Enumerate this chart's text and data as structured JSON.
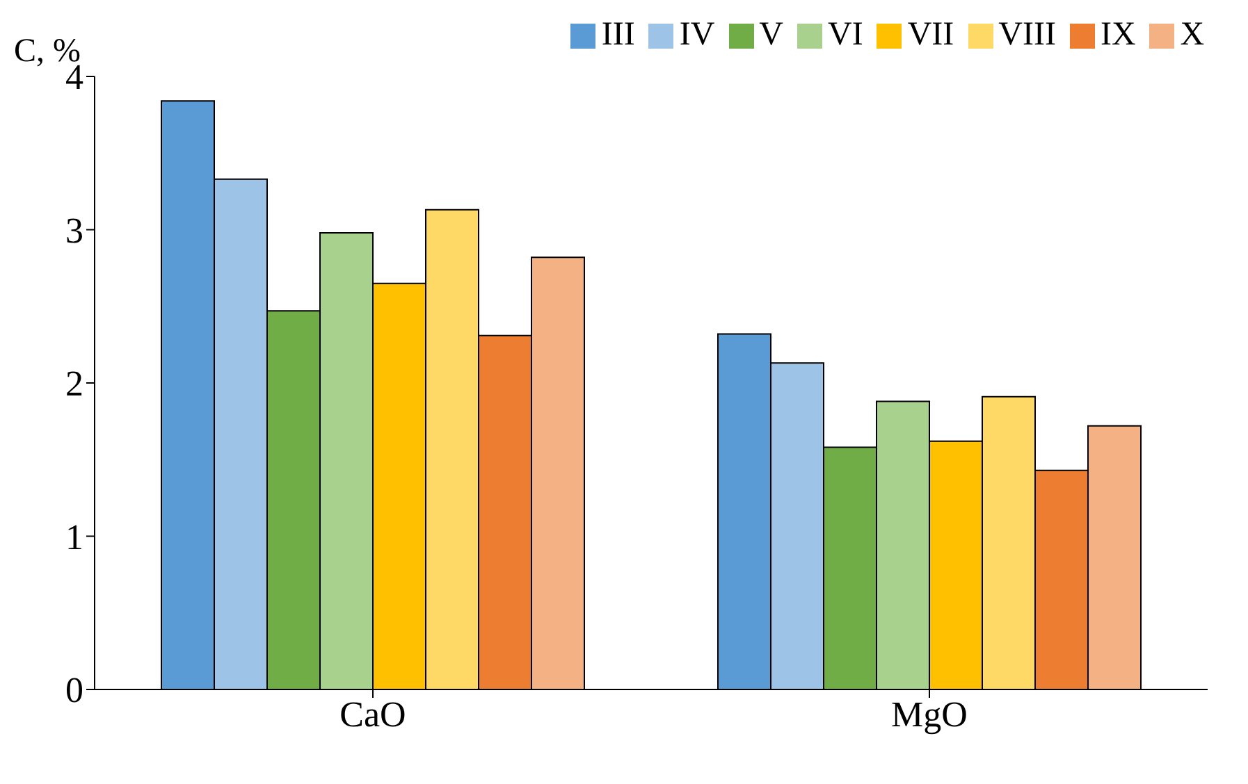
{
  "chart_data": {
    "type": "bar",
    "ylabel": "C, %",
    "categories": [
      "CaO",
      "MgO"
    ],
    "series": [
      {
        "name": "III",
        "color": "#5b9bd5",
        "values": [
          3.84,
          2.32
        ]
      },
      {
        "name": "IV",
        "color": "#9dc3e6",
        "values": [
          3.33,
          2.13
        ]
      },
      {
        "name": "V",
        "color": "#70ad47",
        "values": [
          2.47,
          1.58
        ]
      },
      {
        "name": "VI",
        "color": "#a9d18e",
        "values": [
          2.98,
          1.88
        ]
      },
      {
        "name": "VII",
        "color": "#ffc000",
        "values": [
          2.65,
          1.62
        ]
      },
      {
        "name": "VIII",
        "color": "#ffd966",
        "values": [
          3.13,
          1.91
        ]
      },
      {
        "name": "IX",
        "color": "#ed7d31",
        "values": [
          2.31,
          1.43
        ]
      },
      {
        "name": "X",
        "color": "#f4b183",
        "values": [
          2.82,
          1.72
        ]
      }
    ],
    "ylim": [
      0,
      4
    ],
    "yticks": [
      0,
      1,
      2,
      3,
      4
    ],
    "grid": false,
    "legend": "top"
  }
}
